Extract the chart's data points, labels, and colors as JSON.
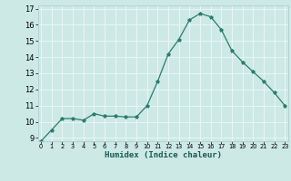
{
  "x": [
    0,
    1,
    2,
    3,
    4,
    5,
    6,
    7,
    8,
    9,
    10,
    11,
    12,
    13,
    14,
    15,
    16,
    17,
    18,
    19,
    20,
    21,
    22,
    23
  ],
  "y": [
    8.8,
    9.5,
    10.2,
    10.2,
    10.1,
    10.5,
    10.35,
    10.35,
    10.3,
    10.3,
    11.0,
    12.5,
    14.2,
    15.1,
    16.3,
    16.7,
    16.5,
    15.7,
    14.4,
    13.7,
    13.1,
    12.5,
    11.8,
    11.0
  ],
  "xlabel": "Humidex (Indice chaleur)",
  "ylim_min": 9,
  "ylim_max": 17,
  "xlim_min": 0,
  "xlim_max": 23,
  "yticks": [
    9,
    10,
    11,
    12,
    13,
    14,
    15,
    16,
    17
  ],
  "xticks": [
    0,
    1,
    2,
    3,
    4,
    5,
    6,
    7,
    8,
    9,
    10,
    11,
    12,
    13,
    14,
    15,
    16,
    17,
    18,
    19,
    20,
    21,
    22,
    23
  ],
  "line_color": "#2a7d6e",
  "marker": "*",
  "markersize": 2.8,
  "bg_color": "#cce9e5",
  "grid_color": "#e8f5f3",
  "xlabel_fontsize": 6.5,
  "ytick_fontsize": 6.0,
  "xtick_fontsize": 4.8
}
